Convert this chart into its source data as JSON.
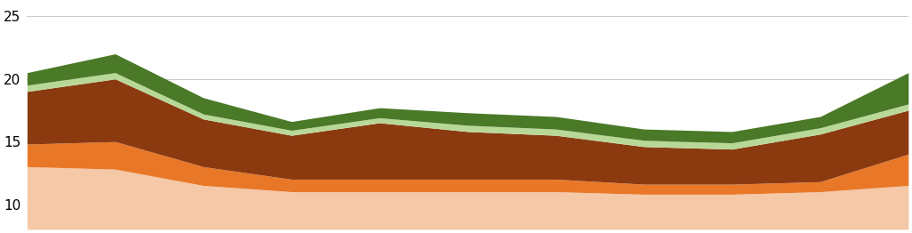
{
  "x": [
    0,
    1,
    2,
    3,
    4,
    5,
    6,
    7,
    8,
    9,
    10
  ],
  "layer1_base": [
    8.0,
    8.0,
    8.0,
    8.0,
    8.0,
    8.0,
    8.0,
    8.0,
    8.0,
    8.0,
    8.0
  ],
  "layer1": [
    5.0,
    4.8,
    3.5,
    3.0,
    3.0,
    3.0,
    3.0,
    2.8,
    2.8,
    3.0,
    3.5
  ],
  "layer2": [
    1.8,
    2.2,
    1.5,
    1.0,
    1.0,
    1.0,
    1.0,
    0.8,
    0.8,
    0.8,
    2.5
  ],
  "layer3": [
    4.2,
    5.0,
    3.8,
    3.5,
    4.5,
    3.8,
    3.5,
    3.0,
    2.8,
    3.8,
    3.5
  ],
  "layer4": [
    0.5,
    0.5,
    0.4,
    0.4,
    0.4,
    0.5,
    0.5,
    0.5,
    0.5,
    0.5,
    0.5
  ],
  "layer5": [
    1.0,
    1.5,
    1.3,
    0.7,
    0.8,
    1.0,
    1.0,
    0.9,
    0.9,
    0.9,
    2.5
  ],
  "colors": [
    "#f5c8a8",
    "#e87828",
    "#8b3a10",
    "#b8d898",
    "#4a7a28"
  ],
  "ylim": [
    8,
    26
  ],
  "yticks": [
    10,
    15,
    20,
    25
  ],
  "xlim": [
    0,
    10
  ],
  "background_color": "#ffffff",
  "grid_color": "#cccccc"
}
